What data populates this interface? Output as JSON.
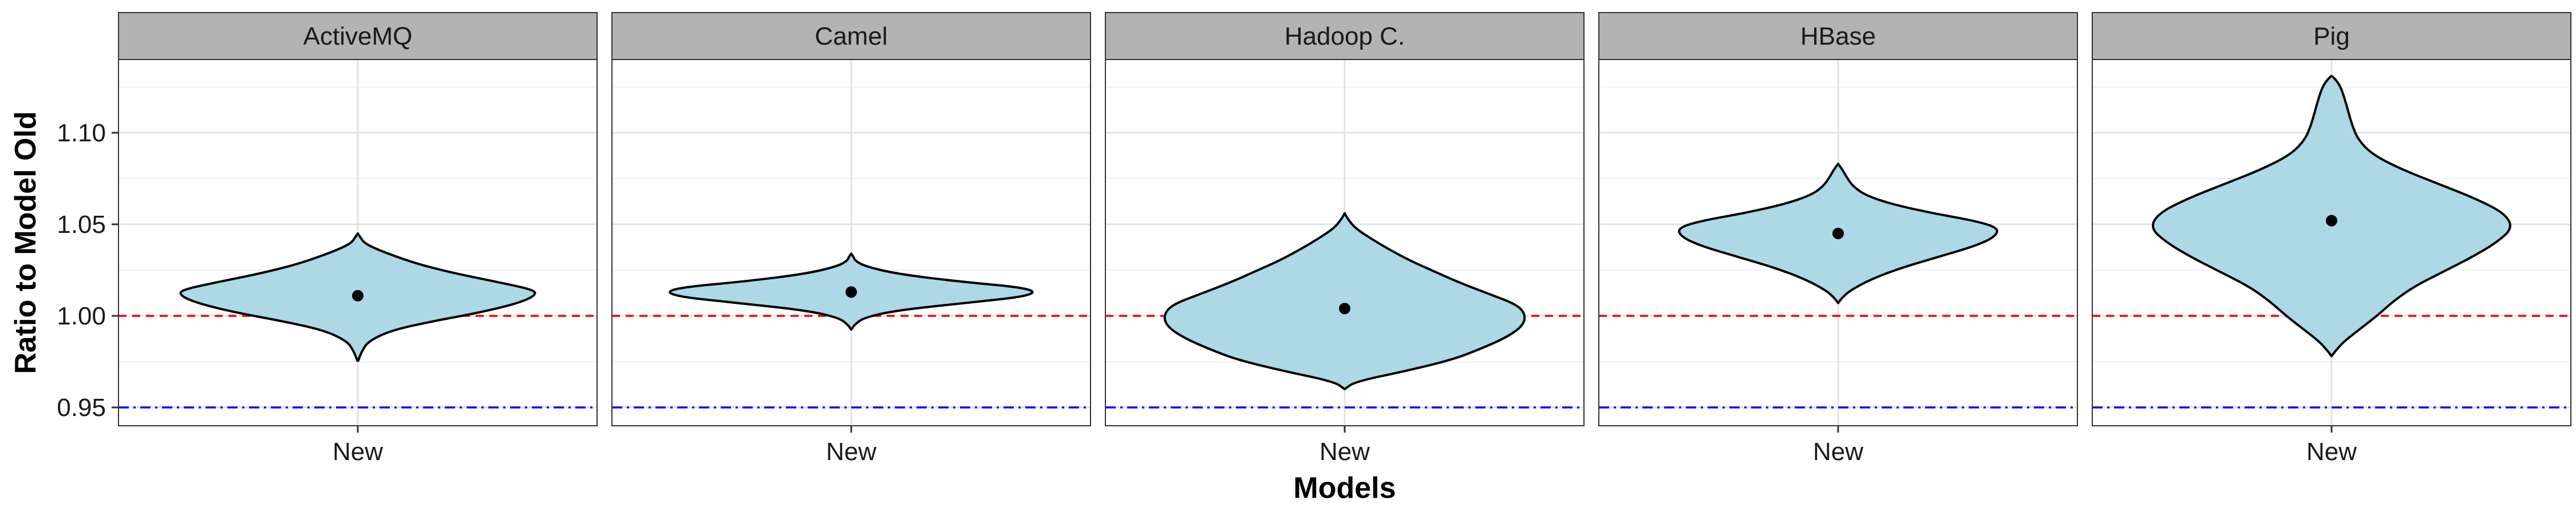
{
  "chart_data": {
    "type": "violin",
    "xlabel": "Models",
    "ylabel": "Ratio to Model Old",
    "ylim": [
      0.94,
      1.14
    ],
    "yticks": [
      0.95,
      1.0,
      1.05,
      1.1
    ],
    "ytick_labels": [
      "0.95",
      "1.00",
      "1.05",
      "1.10"
    ],
    "grid": true,
    "reference_lines": [
      {
        "y": 1.0,
        "color": "#ff0000",
        "style": "dashed"
      },
      {
        "y": 0.95,
        "color": "#0000ff",
        "style": "dashdot"
      }
    ],
    "fill_color": "#add8e6",
    "panels": [
      {
        "strip": "ActiveMQ",
        "category": "New",
        "mean": 1.011,
        "profile": [
          [
            0.9755,
            0.002
          ],
          [
            0.978,
            0.01
          ],
          [
            0.981,
            0.022
          ],
          [
            0.986,
            0.05
          ],
          [
            0.992,
            0.16
          ],
          [
            0.997,
            0.36
          ],
          [
            1.002,
            0.6
          ],
          [
            1.007,
            0.78
          ],
          [
            1.011,
            0.86
          ],
          [
            1.014,
            0.86
          ],
          [
            1.018,
            0.7
          ],
          [
            1.023,
            0.48
          ],
          [
            1.028,
            0.3
          ],
          [
            1.033,
            0.17
          ],
          [
            1.037,
            0.08
          ],
          [
            1.04,
            0.03
          ],
          [
            1.043,
            0.012
          ],
          [
            1.045,
            0.0
          ]
        ]
      },
      {
        "strip": "Camel",
        "category": "New",
        "mean": 1.013,
        "profile": [
          [
            0.9925,
            0.0
          ],
          [
            0.995,
            0.015
          ],
          [
            0.999,
            0.06
          ],
          [
            1.003,
            0.22
          ],
          [
            1.007,
            0.55
          ],
          [
            1.011,
            0.88
          ],
          [
            1.015,
            0.88
          ],
          [
            1.019,
            0.5
          ],
          [
            1.023,
            0.22
          ],
          [
            1.027,
            0.07
          ],
          [
            1.03,
            0.02
          ],
          [
            1.032,
            0.012
          ],
          [
            1.034,
            0.0
          ]
        ]
      },
      {
        "strip": "Hadoop C.",
        "category": "New",
        "mean": 1.004,
        "profile": [
          [
            0.96,
            0.0
          ],
          [
            0.964,
            0.05
          ],
          [
            0.97,
            0.3
          ],
          [
            0.976,
            0.52
          ],
          [
            0.982,
            0.66
          ],
          [
            0.988,
            0.78
          ],
          [
            0.994,
            0.86
          ],
          [
            1.0,
            0.88
          ],
          [
            1.006,
            0.84
          ],
          [
            1.012,
            0.7
          ],
          [
            1.018,
            0.56
          ],
          [
            1.024,
            0.44
          ],
          [
            1.03,
            0.32
          ],
          [
            1.036,
            0.22
          ],
          [
            1.042,
            0.13
          ],
          [
            1.048,
            0.05
          ],
          [
            1.053,
            0.015
          ],
          [
            1.056,
            0.0
          ]
        ]
      },
      {
        "strip": "HBase",
        "category": "New",
        "mean": 1.045,
        "profile": [
          [
            1.007,
            0.0
          ],
          [
            1.01,
            0.02
          ],
          [
            1.014,
            0.06
          ],
          [
            1.02,
            0.16
          ],
          [
            1.026,
            0.3
          ],
          [
            1.032,
            0.48
          ],
          [
            1.038,
            0.66
          ],
          [
            1.043,
            0.76
          ],
          [
            1.048,
            0.78
          ],
          [
            1.052,
            0.66
          ],
          [
            1.056,
            0.46
          ],
          [
            1.061,
            0.26
          ],
          [
            1.066,
            0.13
          ],
          [
            1.071,
            0.07
          ],
          [
            1.076,
            0.04
          ],
          [
            1.08,
            0.02
          ],
          [
            1.083,
            0.0
          ]
        ]
      },
      {
        "strip": "Pig",
        "category": "New",
        "mean": 1.052,
        "profile": [
          [
            0.978,
            0.0
          ],
          [
            0.981,
            0.02
          ],
          [
            0.986,
            0.06
          ],
          [
            0.993,
            0.14
          ],
          [
            1.0,
            0.22
          ],
          [
            1.008,
            0.3
          ],
          [
            1.016,
            0.4
          ],
          [
            1.024,
            0.54
          ],
          [
            1.032,
            0.68
          ],
          [
            1.04,
            0.8
          ],
          [
            1.048,
            0.88
          ],
          [
            1.056,
            0.84
          ],
          [
            1.064,
            0.7
          ],
          [
            1.072,
            0.52
          ],
          [
            1.08,
            0.34
          ],
          [
            1.088,
            0.2
          ],
          [
            1.096,
            0.13
          ],
          [
            1.104,
            0.1
          ],
          [
            1.112,
            0.08
          ],
          [
            1.12,
            0.06
          ],
          [
            1.126,
            0.04
          ],
          [
            1.13,
            0.012
          ],
          [
            1.131,
            0.0
          ]
        ]
      }
    ]
  }
}
